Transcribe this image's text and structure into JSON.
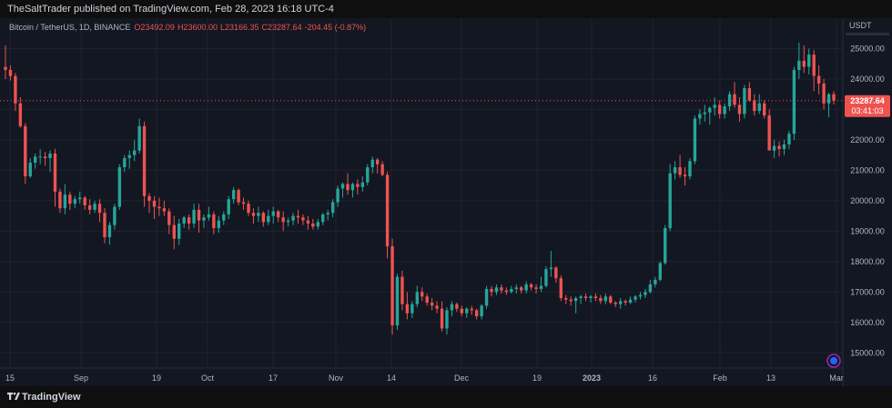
{
  "header": {
    "published_line": "TheSaltTrader published on TradingView.com, Feb 28, 2023 16:18 UTC-4"
  },
  "footer": {
    "brand": "TradingView"
  },
  "chart_data": {
    "type": "candlestick",
    "symbol_line": "Bitcoin / TetherUS, 1D, BINANCE",
    "ohlc_line": {
      "open": "O23492.09",
      "high": "H23600.00",
      "low": "L23166.35",
      "close": "C23287.64",
      "change": "-204.45 (-0.87%)"
    },
    "currency": "USDT",
    "ylim": [
      14500,
      26000
    ],
    "yticks": [
      "25000.00",
      "24000.00",
      "23000.00",
      "22000.00",
      "21000.00",
      "20000.00",
      "19000.00",
      "18000.00",
      "17000.00",
      "16000.00",
      "15000.00"
    ],
    "xticks": [
      "15",
      "Sep",
      "19",
      "Oct",
      "17",
      "Nov",
      "14",
      "Dec",
      "19",
      "2023",
      "16",
      "Feb",
      "13",
      "Mar"
    ],
    "last_price": "23287.64",
    "countdown": "03:41:03",
    "colors": {
      "up": "#26a69a",
      "down": "#ef5350",
      "background": "#131722",
      "grid": "#1f2230",
      "text": "#b2b5be"
    },
    "candles_ohlc": [
      [
        24400,
        25100,
        24000,
        24300
      ],
      [
        24300,
        24450,
        23950,
        24100
      ],
      [
        24100,
        24200,
        22950,
        23200
      ],
      [
        23200,
        23400,
        22400,
        22450
      ],
      [
        22450,
        22550,
        20550,
        20800
      ],
      [
        20800,
        21400,
        20750,
        21250
      ],
      [
        21250,
        21550,
        21050,
        21450
      ],
      [
        21450,
        21700,
        21200,
        21450
      ],
      [
        21450,
        21600,
        21150,
        21400
      ],
      [
        21400,
        21650,
        20950,
        21550
      ],
      [
        21550,
        21700,
        19800,
        20300
      ],
      [
        20300,
        20400,
        19600,
        19750
      ],
      [
        19750,
        20550,
        19550,
        20200
      ],
      [
        20200,
        20300,
        19700,
        19900
      ],
      [
        19900,
        20150,
        19750,
        20050
      ],
      [
        20050,
        20300,
        19900,
        20100
      ],
      [
        20100,
        20150,
        19700,
        19850
      ],
      [
        19850,
        20050,
        19550,
        19700
      ],
      [
        19700,
        20000,
        19600,
        19900
      ],
      [
        19900,
        20050,
        19300,
        19600
      ],
      [
        19600,
        19750,
        18600,
        18800
      ],
      [
        18800,
        19300,
        18550,
        19200
      ],
      [
        19200,
        19900,
        19050,
        19800
      ],
      [
        19800,
        21200,
        19700,
        21100
      ],
      [
        21100,
        21500,
        20950,
        21400
      ],
      [
        21400,
        21650,
        21050,
        21500
      ],
      [
        21500,
        22000,
        21300,
        21650
      ],
      [
        21650,
        22700,
        21550,
        22450
      ],
      [
        22450,
        22600,
        19800,
        20150
      ],
      [
        20150,
        20250,
        19600,
        20000
      ],
      [
        20000,
        20150,
        19400,
        19800
      ],
      [
        19800,
        20100,
        19500,
        19750
      ],
      [
        19750,
        20000,
        19500,
        19650
      ],
      [
        19650,
        19750,
        18900,
        19200
      ],
      [
        19200,
        19500,
        18400,
        18750
      ],
      [
        18750,
        19400,
        18550,
        19250
      ],
      [
        19250,
        19500,
        19100,
        19450
      ],
      [
        19450,
        19550,
        19050,
        19250
      ],
      [
        19250,
        19900,
        19100,
        19700
      ],
      [
        19700,
        19900,
        18950,
        19350
      ],
      [
        19350,
        19550,
        19100,
        19450
      ],
      [
        19450,
        19800,
        19350,
        19550
      ],
      [
        19550,
        19650,
        18900,
        19100
      ],
      [
        19100,
        19500,
        18950,
        19350
      ],
      [
        19350,
        19650,
        19200,
        19550
      ],
      [
        19550,
        20150,
        19400,
        20050
      ],
      [
        20050,
        20450,
        19900,
        20350
      ],
      [
        20350,
        20400,
        19850,
        19950
      ],
      [
        19950,
        20100,
        19700,
        19900
      ],
      [
        19900,
        20000,
        19500,
        19600
      ],
      [
        19600,
        19750,
        19250,
        19500
      ],
      [
        19500,
        19800,
        19300,
        19600
      ],
      [
        19600,
        19650,
        19150,
        19300
      ],
      [
        19300,
        19700,
        19200,
        19500
      ],
      [
        19500,
        19800,
        19250,
        19650
      ],
      [
        19650,
        19700,
        19300,
        19450
      ],
      [
        19450,
        19650,
        19000,
        19300
      ],
      [
        19300,
        19450,
        19150,
        19350
      ],
      [
        19350,
        19600,
        19200,
        19500
      ],
      [
        19500,
        19700,
        19250,
        19450
      ],
      [
        19450,
        19550,
        19200,
        19350
      ],
      [
        19350,
        19500,
        19050,
        19250
      ],
      [
        19250,
        19400,
        19050,
        19150
      ],
      [
        19150,
        19400,
        19050,
        19300
      ],
      [
        19300,
        19600,
        19200,
        19550
      ],
      [
        19550,
        19700,
        19350,
        19600
      ],
      [
        19600,
        20050,
        19450,
        19950
      ],
      [
        19950,
        20500,
        19800,
        20400
      ],
      [
        20400,
        20600,
        20100,
        20550
      ],
      [
        20550,
        20900,
        20200,
        20350
      ],
      [
        20350,
        20600,
        20100,
        20550
      ],
      [
        20550,
        20700,
        20200,
        20450
      ],
      [
        20450,
        20800,
        20300,
        20600
      ],
      [
        20600,
        21200,
        20500,
        21100
      ],
      [
        21100,
        21450,
        20900,
        21350
      ],
      [
        21350,
        21400,
        20900,
        21200
      ],
      [
        21200,
        21300,
        20800,
        20850
      ],
      [
        20850,
        20950,
        18100,
        18500
      ],
      [
        18500,
        18750,
        15600,
        15900
      ],
      [
        15900,
        17600,
        15750,
        17500
      ],
      [
        17500,
        17700,
        16400,
        16600
      ],
      [
        16600,
        17000,
        16100,
        16300
      ],
      [
        16300,
        16700,
        16150,
        16600
      ],
      [
        16600,
        17200,
        16500,
        17000
      ],
      [
        17000,
        17150,
        16700,
        16850
      ],
      [
        16850,
        16950,
        16550,
        16650
      ],
      [
        16650,
        16800,
        16400,
        16550
      ],
      [
        16550,
        16700,
        16300,
        16450
      ],
      [
        16450,
        16700,
        15700,
        15800
      ],
      [
        15800,
        16500,
        15600,
        16400
      ],
      [
        16400,
        16700,
        16200,
        16600
      ],
      [
        16600,
        16650,
        16350,
        16450
      ],
      [
        16450,
        16550,
        16200,
        16300
      ],
      [
        16300,
        16500,
        16150,
        16450
      ],
      [
        16450,
        16550,
        16250,
        16400
      ],
      [
        16400,
        16450,
        16100,
        16200
      ],
      [
        16200,
        16600,
        16100,
        16550
      ],
      [
        16550,
        17200,
        16450,
        17100
      ],
      [
        17100,
        17200,
        16850,
        17000
      ],
      [
        17000,
        17250,
        16900,
        17150
      ],
      [
        17150,
        17250,
        16950,
        17050
      ],
      [
        17050,
        17150,
        16900,
        17000
      ],
      [
        17000,
        17200,
        16950,
        17100
      ],
      [
        17100,
        17250,
        16950,
        17150
      ],
      [
        17150,
        17200,
        16950,
        17050
      ],
      [
        17050,
        17350,
        16950,
        17250
      ],
      [
        17250,
        17300,
        17050,
        17150
      ],
      [
        17150,
        17250,
        16950,
        17100
      ],
      [
        17100,
        17500,
        17000,
        17200
      ],
      [
        17200,
        17850,
        17150,
        17750
      ],
      [
        17750,
        18350,
        17500,
        17800
      ],
      [
        17800,
        17850,
        17300,
        17450
      ],
      [
        17450,
        17550,
        16700,
        16800
      ],
      [
        16800,
        16900,
        16600,
        16750
      ],
      [
        16750,
        16850,
        16550,
        16700
      ],
      [
        16700,
        16850,
        16300,
        16800
      ],
      [
        16800,
        16900,
        16600,
        16850
      ],
      [
        16850,
        16950,
        16700,
        16800
      ],
      [
        16800,
        16900,
        16650,
        16850
      ],
      [
        16850,
        16950,
        16700,
        16800
      ],
      [
        16800,
        16900,
        16600,
        16700
      ],
      [
        16700,
        16950,
        16600,
        16850
      ],
      [
        16850,
        16900,
        16600,
        16650
      ],
      [
        16650,
        16700,
        16500,
        16600
      ],
      [
        16600,
        16800,
        16450,
        16700
      ],
      [
        16700,
        16750,
        16550,
        16650
      ],
      [
        16650,
        16850,
        16600,
        16750
      ],
      [
        16750,
        16900,
        16650,
        16850
      ],
      [
        16850,
        17000,
        16750,
        16900
      ],
      [
        16900,
        17100,
        16800,
        17000
      ],
      [
        17000,
        17400,
        16950,
        17250
      ],
      [
        17250,
        17500,
        17150,
        17400
      ],
      [
        17400,
        18000,
        17350,
        17950
      ],
      [
        17950,
        19200,
        17900,
        19100
      ],
      [
        19100,
        21200,
        19000,
        20900
      ],
      [
        20900,
        21300,
        20700,
        21100
      ],
      [
        21100,
        21500,
        20750,
        20850
      ],
      [
        20850,
        21100,
        20500,
        20800
      ],
      [
        20800,
        21400,
        20700,
        21300
      ],
      [
        21300,
        22800,
        21200,
        22700
      ],
      [
        22700,
        23000,
        22500,
        22850
      ],
      [
        22850,
        23150,
        22600,
        22900
      ],
      [
        22900,
        23100,
        22500,
        23050
      ],
      [
        23050,
        23400,
        22800,
        23150
      ],
      [
        23150,
        23300,
        22700,
        22850
      ],
      [
        22850,
        23200,
        22700,
        23100
      ],
      [
        23100,
        23600,
        22950,
        23500
      ],
      [
        23500,
        23900,
        23050,
        23150
      ],
      [
        23150,
        23400,
        22600,
        22850
      ],
      [
        22850,
        23800,
        22700,
        23700
      ],
      [
        23700,
        23900,
        23250,
        23300
      ],
      [
        23300,
        23500,
        22800,
        22950
      ],
      [
        22950,
        23500,
        22850,
        23200
      ],
      [
        23200,
        23300,
        22700,
        22800
      ],
      [
        22800,
        23000,
        21700,
        21650
      ],
      [
        21650,
        22000,
        21400,
        21800
      ],
      [
        21800,
        21950,
        21450,
        21700
      ],
      [
        21700,
        22000,
        21500,
        21850
      ],
      [
        21850,
        22300,
        21700,
        22200
      ],
      [
        22200,
        24400,
        22000,
        24300
      ],
      [
        24300,
        25200,
        24000,
        24600
      ],
      [
        24600,
        25100,
        24200,
        24400
      ],
      [
        24400,
        25000,
        24150,
        24800
      ],
      [
        24800,
        24950,
        23600,
        24100
      ],
      [
        24100,
        24450,
        23500,
        23850
      ],
      [
        23850,
        24000,
        23000,
        23200
      ],
      [
        23200,
        23550,
        22750,
        23500
      ],
      [
        23500,
        23600,
        23166,
        23288
      ]
    ]
  }
}
